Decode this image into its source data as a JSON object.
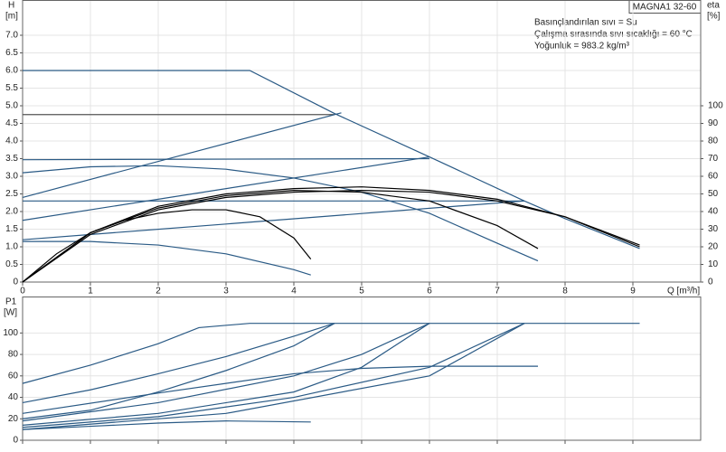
{
  "chart_data": [
    {
      "type": "line",
      "title": "MAGNA1 32-60",
      "annotations": [
        "Basınçlandırılan sıvı = Su",
        "Çalışma sırasında sıvı sıcaklığı = 60 °C",
        "Yoğunluk = 983.2 kg/m³"
      ],
      "y_label": "H",
      "y_unit": "[m]",
      "y2_label": "eta",
      "y2_unit": "[%]",
      "x_label": "Q [m³/h]",
      "xlim": [
        0,
        10
      ],
      "xticks": [
        0,
        1,
        2,
        3,
        4,
        5,
        6,
        7,
        8,
        9
      ],
      "ylim": [
        0,
        8
      ],
      "yticks": [
        0,
        0.5,
        {
          "value": 1,
          "label": "1.0"
        },
        1.5,
        {
          "value": 2,
          "label": "2.0"
        },
        2.5,
        {
          "value": 3,
          "label": "3.0"
        },
        3.5,
        {
          "value": 4,
          "label": "4.0"
        },
        4.5,
        {
          "value": 5,
          "label": "5.0"
        },
        5.5,
        {
          "value": 6,
          "label": "6.0"
        },
        6.5,
        {
          "value": 7,
          "label": "7.0"
        }
      ],
      "y2lim": [
        0,
        160
      ],
      "y2ticks": [
        0,
        10,
        20,
        30,
        40,
        50,
        60,
        70,
        80,
        90,
        100
      ],
      "grid": true,
      "series": [
        {
          "color": "#2a5a85",
          "x": [
            0,
            3.35,
            4.6,
            6,
            7.4,
            8,
            9.1
          ],
          "values": [
            6,
            6,
            4.78,
            3.55,
            2.3,
            1.8,
            0.95
          ]
        },
        {
          "color": "#555555",
          "x": [
            0,
            4.6
          ],
          "values": [
            4.75,
            4.75
          ]
        },
        {
          "color": "#2a5a85",
          "x": [
            0,
            6
          ],
          "values": [
            3.47,
            3.5
          ]
        },
        {
          "color": "#2a5a85",
          "x": [
            0,
            7.4
          ],
          "values": [
            2.3,
            2.3
          ]
        },
        {
          "color": "#2a5a85",
          "x": [
            0,
            4.7
          ],
          "values": [
            2.4,
            4.8
          ]
        },
        {
          "color": "#2a5a85",
          "x": [
            0,
            6
          ],
          "values": [
            1.75,
            3.55
          ]
        },
        {
          "color": "#2a5a85",
          "x": [
            0,
            7.4
          ],
          "values": [
            1.2,
            2.3
          ]
        },
        {
          "color": "#2a5a85",
          "x": [
            0,
            1,
            2,
            3,
            4,
            5,
            6,
            7,
            7.6
          ],
          "values": [
            3.1,
            3.27,
            3.3,
            3.2,
            2.95,
            2.55,
            1.95,
            1.1,
            0.6
          ]
        },
        {
          "color": "#2a5a85",
          "x": [
            0,
            1,
            2,
            3,
            4,
            4.25
          ],
          "values": [
            1.15,
            1.15,
            1.05,
            0.8,
            0.35,
            0.2
          ]
        },
        {
          "color": "#000000",
          "axis": "y2",
          "x": [
            0,
            0.5,
            1,
            1.5,
            2,
            2.5,
            3,
            3.5,
            4,
            4.25
          ],
          "values": [
            0,
            16,
            28,
            35,
            39,
            41,
            41,
            37,
            25,
            13
          ]
        },
        {
          "color": "#000000",
          "axis": "y2",
          "x": [
            0,
            1,
            2,
            3,
            4,
            5,
            6,
            7,
            7.6
          ],
          "values": [
            0,
            28,
            42,
            49,
            52,
            51,
            46,
            32,
            19
          ]
        },
        {
          "color": "#000000",
          "axis": "y2",
          "x": [
            0,
            1,
            2,
            3,
            4,
            5,
            6,
            7,
            8,
            9.1
          ],
          "values": [
            0,
            28,
            43,
            50,
            53,
            54,
            52,
            47,
            37,
            20
          ]
        },
        {
          "color": "#000000",
          "axis": "y2",
          "x": [
            0,
            1,
            2,
            3,
            4,
            5,
            6,
            7,
            8,
            9.1
          ],
          "values": [
            0,
            27,
            41,
            48,
            51,
            52,
            51,
            46,
            37,
            21
          ]
        }
      ]
    },
    {
      "type": "line",
      "y_label": "P1",
      "y_unit": "[W]",
      "xlim": [
        0,
        10
      ],
      "ylim": [
        0,
        134
      ],
      "yticks": [
        0,
        20,
        40,
        60,
        80,
        100
      ],
      "grid": true,
      "series": [
        {
          "color": "#2a5a85",
          "x": [
            0,
            1,
            2,
            2.6,
            3.35,
            9.1
          ],
          "values": [
            53,
            70,
            90,
            105,
            109,
            109
          ]
        },
        {
          "color": "#2a5a85",
          "x": [
            0,
            1,
            2,
            3,
            4,
            4.6
          ],
          "values": [
            35,
            47,
            62,
            78,
            97,
            109
          ]
        },
        {
          "color": "#2a5a85",
          "x": [
            0,
            1,
            2,
            3,
            4,
            4.6
          ],
          "values": [
            20,
            28,
            45,
            65,
            88,
            109
          ]
        },
        {
          "color": "#2a5a85",
          "x": [
            0,
            2,
            4,
            5,
            6
          ],
          "values": [
            18,
            35,
            60,
            80,
            109
          ]
        },
        {
          "color": "#2a5a85",
          "x": [
            0,
            2,
            4,
            5,
            6
          ],
          "values": [
            14,
            25,
            45,
            68,
            109
          ]
        },
        {
          "color": "#2a5a85",
          "x": [
            0,
            2,
            4,
            6,
            7.4
          ],
          "values": [
            12,
            22,
            40,
            68,
            109
          ]
        },
        {
          "color": "#2a5a85",
          "x": [
            0,
            3,
            6,
            7.4
          ],
          "values": [
            10,
            25,
            60,
            109
          ]
        },
        {
          "color": "#2a5a85",
          "x": [
            0,
            2,
            4,
            5,
            6,
            7.6
          ],
          "values": [
            25,
            44,
            62,
            67,
            69,
            69
          ]
        },
        {
          "color": "#2a5a85",
          "x": [
            0,
            1,
            2,
            3,
            4.25
          ],
          "values": [
            10,
            13,
            16,
            18,
            17
          ]
        }
      ]
    }
  ]
}
